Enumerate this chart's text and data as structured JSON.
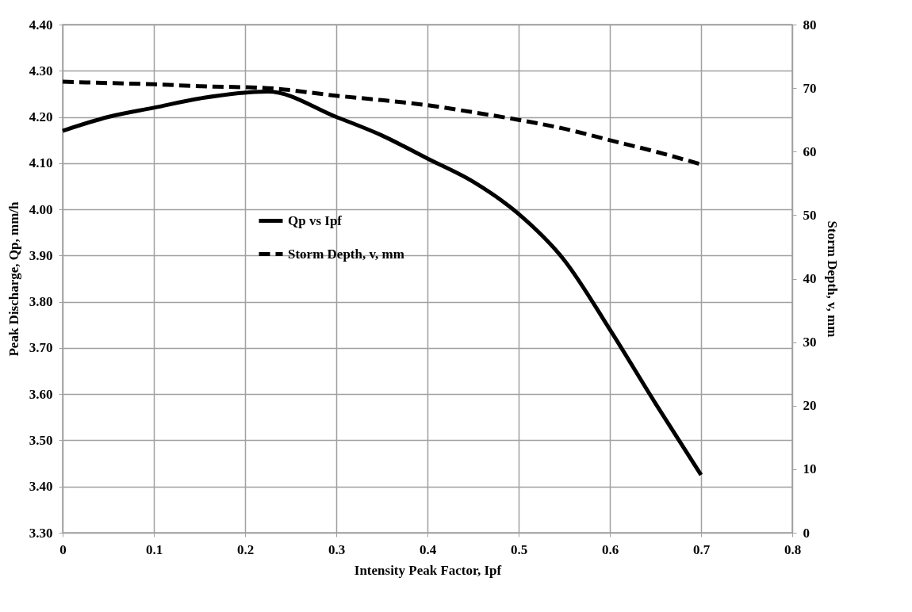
{
  "chart_data": {
    "type": "line",
    "xlabel": "Intensity Peak Factor, Ipf",
    "ylabel": "Peak Discharge, Qp, mm/h",
    "y2label": "Storm Depth, v, mm",
    "x": [
      0,
      0.05,
      0.1,
      0.15,
      0.225,
      0.3,
      0.35,
      0.4,
      0.45,
      0.5,
      0.55,
      0.6,
      0.65,
      0.7
    ],
    "series": [
      {
        "name": "Qp vs Ipf",
        "color": "#000000",
        "line_style": "solid",
        "values": [
          4.17,
          4.2,
          4.22,
          4.24,
          4.255,
          4.2,
          4.16,
          4.11,
          4.06,
          3.99,
          3.89,
          3.74,
          3.58,
          3.425
        ]
      },
      {
        "name": "Storm Depth, v, mm",
        "color": "#000000",
        "line_style": "dashed",
        "axis": "y2",
        "values": [
          71,
          70.8,
          70.6,
          70.3,
          70,
          68.8,
          68.1,
          67.3,
          66.2,
          65,
          63.6,
          61.8,
          60,
          58
        ]
      }
    ],
    "xlim": [
      0,
      0.8
    ],
    "xticks": [
      0,
      0.1,
      0.2,
      0.3,
      0.4,
      0.5,
      0.6,
      0.7,
      0.8
    ],
    "ylim": [
      3.3,
      4.4
    ],
    "yticks": [
      {
        "value": 3.3,
        "label": "3.30"
      },
      {
        "value": 3.4,
        "label": "3.40"
      },
      {
        "value": 3.5,
        "label": "3.50"
      },
      {
        "value": 3.6,
        "label": "3.60"
      },
      {
        "value": 3.7,
        "label": "3.70"
      },
      {
        "value": 3.8,
        "label": "3.80"
      },
      {
        "value": 3.9,
        "label": "3.90"
      },
      {
        "value": 4.0,
        "label": "4.00"
      },
      {
        "value": 4.1,
        "label": "4.10"
      },
      {
        "value": 4.2,
        "label": "4.20"
      },
      {
        "value": 4.3,
        "label": "4.30"
      },
      {
        "value": 4.4,
        "label": "4.40"
      }
    ],
    "y2lim": [
      0,
      80
    ],
    "y2ticks": [
      0,
      10,
      20,
      30,
      40,
      50,
      60,
      70,
      80
    ],
    "grid": true,
    "legend": "left",
    "marker": "none"
  }
}
